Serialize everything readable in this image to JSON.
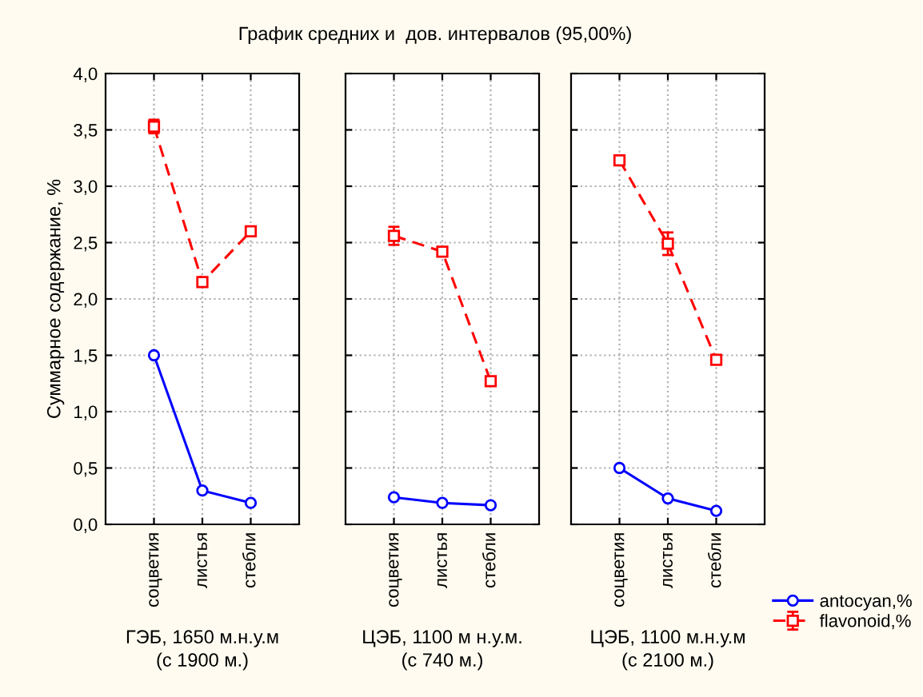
{
  "chart_data": [
    {
      "type": "line",
      "title": "График средних и  дов. интервалов (95,00%)",
      "ylabel": "Суммарное содержание, %",
      "xlabel": "ГЭБ, 1650 м.н.у.м\n(с 1900 м.)",
      "categories": [
        "соцветия",
        "листья",
        "стебли"
      ],
      "ylim": [
        0,
        4
      ],
      "legend": "bottom right",
      "yticks": [
        {
          "value": 0,
          "label": "0,0"
        },
        {
          "value": 0.5,
          "label": "0,5"
        },
        {
          "value": 1,
          "label": "1,0"
        },
        {
          "value": 1.5,
          "label": "1,5"
        },
        {
          "value": 2,
          "label": "2,0"
        },
        {
          "value": 2.5,
          "label": "2,5"
        },
        {
          "value": 3,
          "label": "3,0"
        },
        {
          "value": 3.5,
          "label": "3,5"
        },
        {
          "value": 4,
          "label": "4,0"
        }
      ],
      "grid": true,
      "series": [
        {
          "name": "antocyan,%",
          "color": "#0000ff",
          "values": [
            1.5,
            0.3,
            0.19
          ],
          "marker": "circle",
          "line_style": "solid"
        },
        {
          "name": "flavonoid,%",
          "color": "#ff0000",
          "values": [
            3.53,
            2.15,
            2.6
          ],
          "errors": [
            0.06,
            0.04,
            0.02
          ],
          "marker": "square",
          "line_style": "dashed"
        }
      ]
    },
    {
      "type": "line",
      "xlabel": "ЦЭБ, 1100 м н.у.м.\n(с 740 м.)",
      "categories": [
        "соцветия",
        "листья",
        "стебли"
      ],
      "ylim": [
        0,
        4
      ],
      "yticks": [
        0,
        0.5,
        1,
        1.5,
        2,
        2.5,
        3,
        3.5,
        4
      ],
      "tick_labels": "x",
      "grid": true,
      "series": [
        {
          "color": "#0000ff",
          "values": [
            0.24,
            0.19,
            0.17
          ],
          "marker": "circle",
          "line_style": "solid"
        },
        {
          "color": "#ff0000",
          "values": [
            2.56,
            2.42,
            1.27
          ],
          "errors": [
            0.08,
            0.03,
            0.02
          ],
          "marker": "square",
          "line_style": "dashed"
        }
      ]
    },
    {
      "type": "line",
      "xlabel": "ЦЭБ, 1100 м.н.у.м\n(с 2100 м.)",
      "categories": [
        "соцветия",
        "листья",
        "стебли"
      ],
      "ylim": [
        0,
        4
      ],
      "yticks": [
        0,
        0.5,
        1,
        1.5,
        2,
        2.5,
        3,
        3.5,
        4
      ],
      "tick_labels": "x",
      "grid": true,
      "series": [
        {
          "color": "#0000ff",
          "values": [
            0.5,
            0.23,
            0.12
          ],
          "marker": "circle",
          "line_style": "solid"
        },
        {
          "color": "#ff0000",
          "values": [
            3.23,
            2.49,
            1.46
          ],
          "errors": [
            0.03,
            0.1,
            0.03
          ],
          "marker": "square",
          "line_style": "dashed"
        }
      ]
    }
  ]
}
